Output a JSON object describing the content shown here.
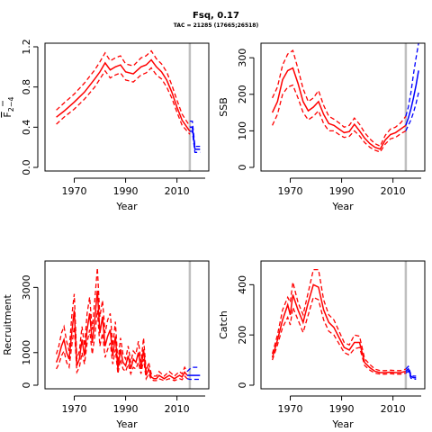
{
  "title": "Fsq, 0.17",
  "subtitle": "TAC = 21285 (17665;26518)",
  "colors": {
    "history": "#ff0000",
    "projection": "#0000ff",
    "marker": "#bfbfbf"
  },
  "chart_data": [
    {
      "type": "line",
      "id": "f",
      "xlabel": "Year",
      "ylabel": "F2-4",
      "xlim": [
        1960,
        2021
      ],
      "ylim": [
        0,
        1.2
      ],
      "xticks": [
        1970,
        1990,
        2010
      ],
      "yticks": [
        0,
        0.4,
        0.8,
        1.2
      ],
      "yticklabels": [
        "0.0",
        "0.4",
        "0.8",
        "1.2"
      ],
      "marker_year": 2015,
      "series": [
        {
          "role": "history",
          "x": [
            1963,
            1966,
            1970,
            1974,
            1978,
            1980,
            1982,
            1984,
            1986,
            1988,
            1990,
            1993,
            1996,
            1998,
            2000,
            2002,
            2004,
            2006,
            2008,
            2010,
            2012,
            2015
          ],
          "median": [
            0.5,
            0.56,
            0.65,
            0.75,
            0.88,
            0.95,
            1.04,
            0.97,
            1.0,
            1.02,
            0.95,
            0.93,
            1.0,
            1.02,
            1.07,
            1.0,
            0.95,
            0.87,
            0.75,
            0.6,
            0.47,
            0.36
          ],
          "lower": [
            0.43,
            0.5,
            0.58,
            0.68,
            0.8,
            0.88,
            0.96,
            0.89,
            0.92,
            0.94,
            0.87,
            0.85,
            0.92,
            0.94,
            0.99,
            0.92,
            0.88,
            0.8,
            0.69,
            0.55,
            0.42,
            0.33
          ],
          "upper": [
            0.57,
            0.64,
            0.73,
            0.84,
            0.97,
            1.05,
            1.14,
            1.06,
            1.09,
            1.11,
            1.03,
            1.01,
            1.09,
            1.11,
            1.16,
            1.08,
            1.03,
            0.95,
            0.82,
            0.67,
            0.53,
            0.41
          ]
        },
        {
          "role": "projection",
          "x": [
            2015,
            2016,
            2017,
            2018,
            2019
          ],
          "median": [
            0.4,
            0.4,
            0.18,
            0.18,
            0.18
          ],
          "lower": [
            0.36,
            0.36,
            0.15,
            0.15,
            0.15
          ],
          "upper": [
            0.46,
            0.46,
            0.21,
            0.21,
            0.21
          ]
        }
      ]
    },
    {
      "type": "line",
      "id": "ssb",
      "xlabel": "Year",
      "ylabel": "SSB",
      "xlim": [
        1960,
        2021
      ],
      "ylim": [
        0,
        330
      ],
      "xticks": [
        1970,
        1990,
        2010
      ],
      "yticks": [
        0,
        100,
        200,
        300
      ],
      "yticklabels": [
        "0",
        "100",
        "200",
        "300"
      ],
      "marker_year": 2015,
      "series": [
        {
          "role": "history",
          "x": [
            1963,
            1965,
            1967,
            1969,
            1971,
            1973,
            1975,
            1977,
            1979,
            1981,
            1983,
            1985,
            1987,
            1989,
            1991,
            1993,
            1995,
            1997,
            1999,
            2001,
            2003,
            2005,
            2007,
            2009,
            2011,
            2013,
            2015
          ],
          "median": [
            150,
            180,
            240,
            265,
            272,
            230,
            180,
            155,
            165,
            180,
            145,
            120,
            115,
            105,
            95,
            98,
            118,
            100,
            80,
            65,
            55,
            50,
            75,
            90,
            95,
            105,
            115
          ],
          "lower": [
            115,
            145,
            200,
            220,
            225,
            190,
            150,
            130,
            140,
            155,
            120,
            100,
            100,
            90,
            82,
            85,
            100,
            86,
            68,
            55,
            47,
            42,
            64,
            78,
            82,
            92,
            100
          ],
          "upper": [
            190,
            220,
            280,
            310,
            320,
            270,
            215,
            180,
            190,
            210,
            170,
            140,
            132,
            122,
            110,
            115,
            135,
            118,
            95,
            78,
            65,
            58,
            88,
            105,
            110,
            122,
            140
          ]
        },
        {
          "role": "projection",
          "x": [
            2015,
            2016,
            2017,
            2018,
            2019,
            2020
          ],
          "median": [
            115,
            135,
            160,
            190,
            225,
            265
          ],
          "lower": [
            100,
            115,
            130,
            150,
            175,
            205
          ],
          "upper": [
            140,
            165,
            205,
            255,
            300,
            340
          ]
        }
      ]
    },
    {
      "type": "line",
      "id": "recruitment",
      "xlabel": "Year",
      "ylabel": "Recruitment",
      "xlim": [
        1960,
        2021
      ],
      "ylim": [
        0,
        3700
      ],
      "xticks": [
        1970,
        1990,
        2010
      ],
      "yticks": [
        0,
        1000,
        3000
      ],
      "yticklabels": [
        "0",
        "1000",
        "3000"
      ],
      "marker_year": 2015,
      "series": [
        {
          "role": "history",
          "x": [
            1963,
            1964,
            1965,
            1966,
            1967,
            1968,
            1969,
            1970,
            1971,
            1972,
            1973,
            1974,
            1975,
            1976,
            1977,
            1978,
            1979,
            1980,
            1981,
            1982,
            1983,
            1984,
            1985,
            1986,
            1987,
            1988,
            1989,
            1990,
            1991,
            1992,
            1993,
            1994,
            1995,
            1996,
            1997,
            1998,
            1999,
            2000,
            2001,
            2002,
            2003,
            2004,
            2005,
            2006,
            2007,
            2008,
            2009,
            2010,
            2011,
            2012,
            2013,
            2014
          ],
          "median": [
            700,
            900,
            1200,
            1400,
            1000,
            800,
            1600,
            2300,
            600,
            800,
            1400,
            900,
            1700,
            2200,
            1300,
            2000,
            2900,
            1600,
            2100,
            1200,
            1500,
            1700,
            900,
            1500,
            500,
            1100,
            700,
            600,
            900,
            500,
            800,
            700,
            1000,
            500,
            1100,
            300,
            500,
            250,
            200,
            200,
            300,
            250,
            200,
            250,
            300,
            250,
            200,
            250,
            300,
            250,
            400,
            300
          ],
          "lower": [
            500,
            650,
            900,
            1050,
            700,
            550,
            1200,
            1800,
            400,
            550,
            1000,
            650,
            1300,
            1700,
            950,
            1500,
            2300,
            1200,
            1600,
            850,
            1100,
            1300,
            650,
            1100,
            350,
            800,
            500,
            420,
            650,
            350,
            550,
            500,
            700,
            350,
            800,
            200,
            350,
            170,
            140,
            140,
            200,
            170,
            140,
            170,
            200,
            170,
            140,
            170,
            200,
            170,
            280,
            200
          ],
          "upper": [
            950,
            1200,
            1600,
            1800,
            1350,
            1050,
            2100,
            2800,
            800,
            1050,
            1800,
            1200,
            2200,
            2700,
            1700,
            2600,
            3600,
            2100,
            2600,
            1600,
            2000,
            2200,
            1200,
            1950,
            700,
            1450,
            950,
            800,
            1200,
            700,
            1050,
            950,
            1350,
            700,
            1450,
            420,
            700,
            350,
            280,
            280,
            420,
            350,
            280,
            350,
            420,
            350,
            280,
            350,
            420,
            350,
            550,
            420
          ]
        },
        {
          "role": "projection",
          "x": [
            2014,
            2015,
            2016,
            2017,
            2018,
            2019
          ],
          "median": [
            300,
            300,
            300,
            300,
            300,
            300
          ],
          "lower": [
            200,
            180,
            180,
            180,
            180,
            180
          ],
          "upper": [
            420,
            500,
            550,
            550,
            550,
            550
          ]
        }
      ]
    },
    {
      "type": "line",
      "id": "catch",
      "xlabel": "Year",
      "ylabel": "Catch",
      "xlim": [
        1960,
        2021
      ],
      "ylim": [
        0,
        480
      ],
      "xticks": [
        1970,
        1990,
        2010
      ],
      "yticks": [
        0,
        200,
        400
      ],
      "yticklabels": [
        "0",
        "200",
        "400"
      ],
      "marker_year": 2015,
      "series": [
        {
          "role": "history",
          "x": [
            1963,
            1965,
            1967,
            1969,
            1970,
            1971,
            1973,
            1975,
            1977,
            1979,
            1981,
            1983,
            1985,
            1987,
            1989,
            1991,
            1993,
            1995,
            1997,
            1999,
            2001,
            2003,
            2005,
            2007,
            2009,
            2011,
            2013,
            2015
          ],
          "median": [
            110,
            180,
            260,
            320,
            280,
            360,
            300,
            250,
            330,
            400,
            390,
            300,
            250,
            230,
            190,
            150,
            140,
            170,
            170,
            90,
            70,
            55,
            50,
            50,
            52,
            50,
            50,
            55
          ],
          "lower": [
            100,
            160,
            230,
            270,
            240,
            310,
            260,
            210,
            280,
            350,
            340,
            260,
            215,
            200,
            165,
            130,
            120,
            145,
            150,
            78,
            60,
            48,
            44,
            44,
            46,
            44,
            44,
            48
          ],
          "upper": [
            125,
            200,
            300,
            350,
            330,
            410,
            330,
            280,
            370,
            460,
            460,
            340,
            280,
            260,
            215,
            170,
            160,
            200,
            195,
            105,
            82,
            64,
            58,
            58,
            60,
            58,
            58,
            64
          ]
        },
        {
          "role": "projection",
          "x": [
            2015,
            2016,
            2017,
            2018,
            2019
          ],
          "median": [
            55,
            65,
            35,
            30,
            30
          ],
          "lower": [
            48,
            56,
            28,
            24,
            24
          ],
          "upper": [
            64,
            75,
            42,
            36,
            36
          ]
        }
      ]
    }
  ]
}
